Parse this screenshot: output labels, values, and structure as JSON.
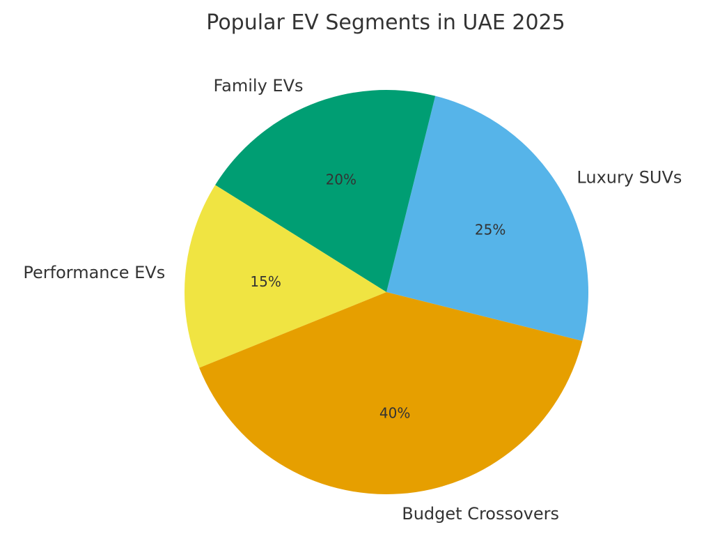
{
  "chart_data": {
    "type": "pie",
    "title": "Popular EV Segments in UAE 2025",
    "categories": [
      "Luxury SUVs",
      "Family EVs",
      "Performance EVs",
      "Budget Crossovers"
    ],
    "values": [
      25,
      20,
      15,
      40
    ],
    "value_labels": [
      "25%",
      "20%",
      "15%",
      "40%"
    ],
    "colors": [
      "#56b4e9",
      "#009e73",
      "#f0e442",
      "#e69f00"
    ],
    "start_angle_deg": -14,
    "direction": "counterclockwise"
  }
}
